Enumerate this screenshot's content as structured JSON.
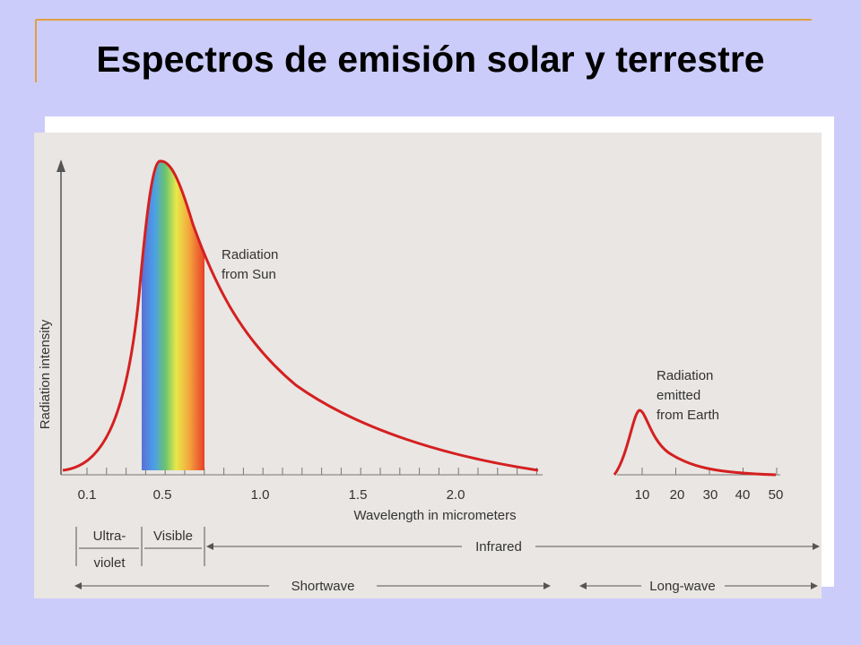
{
  "slide": {
    "title": "Espectros de emisión solar y terrestre",
    "figure": {
      "y_axis_label": "Radiation intensity",
      "x_axis_label": "Wavelength in micrometers",
      "tick_labels": [
        "0.1",
        "0.5",
        "1.0",
        "1.5",
        "2.0",
        "10",
        "20",
        "30",
        "40",
        "50"
      ],
      "sun_label": [
        "Radiation",
        "from Sun"
      ],
      "earth_label": [
        "Radiation",
        "emitted",
        "from Earth"
      ],
      "bands": {
        "ultraviolet": [
          "Ultra-",
          "violet"
        ],
        "visible": "Visible",
        "infrared": "Infrared",
        "shortwave": "Shortwave",
        "longwave": "Long-wave"
      }
    }
  }
}
